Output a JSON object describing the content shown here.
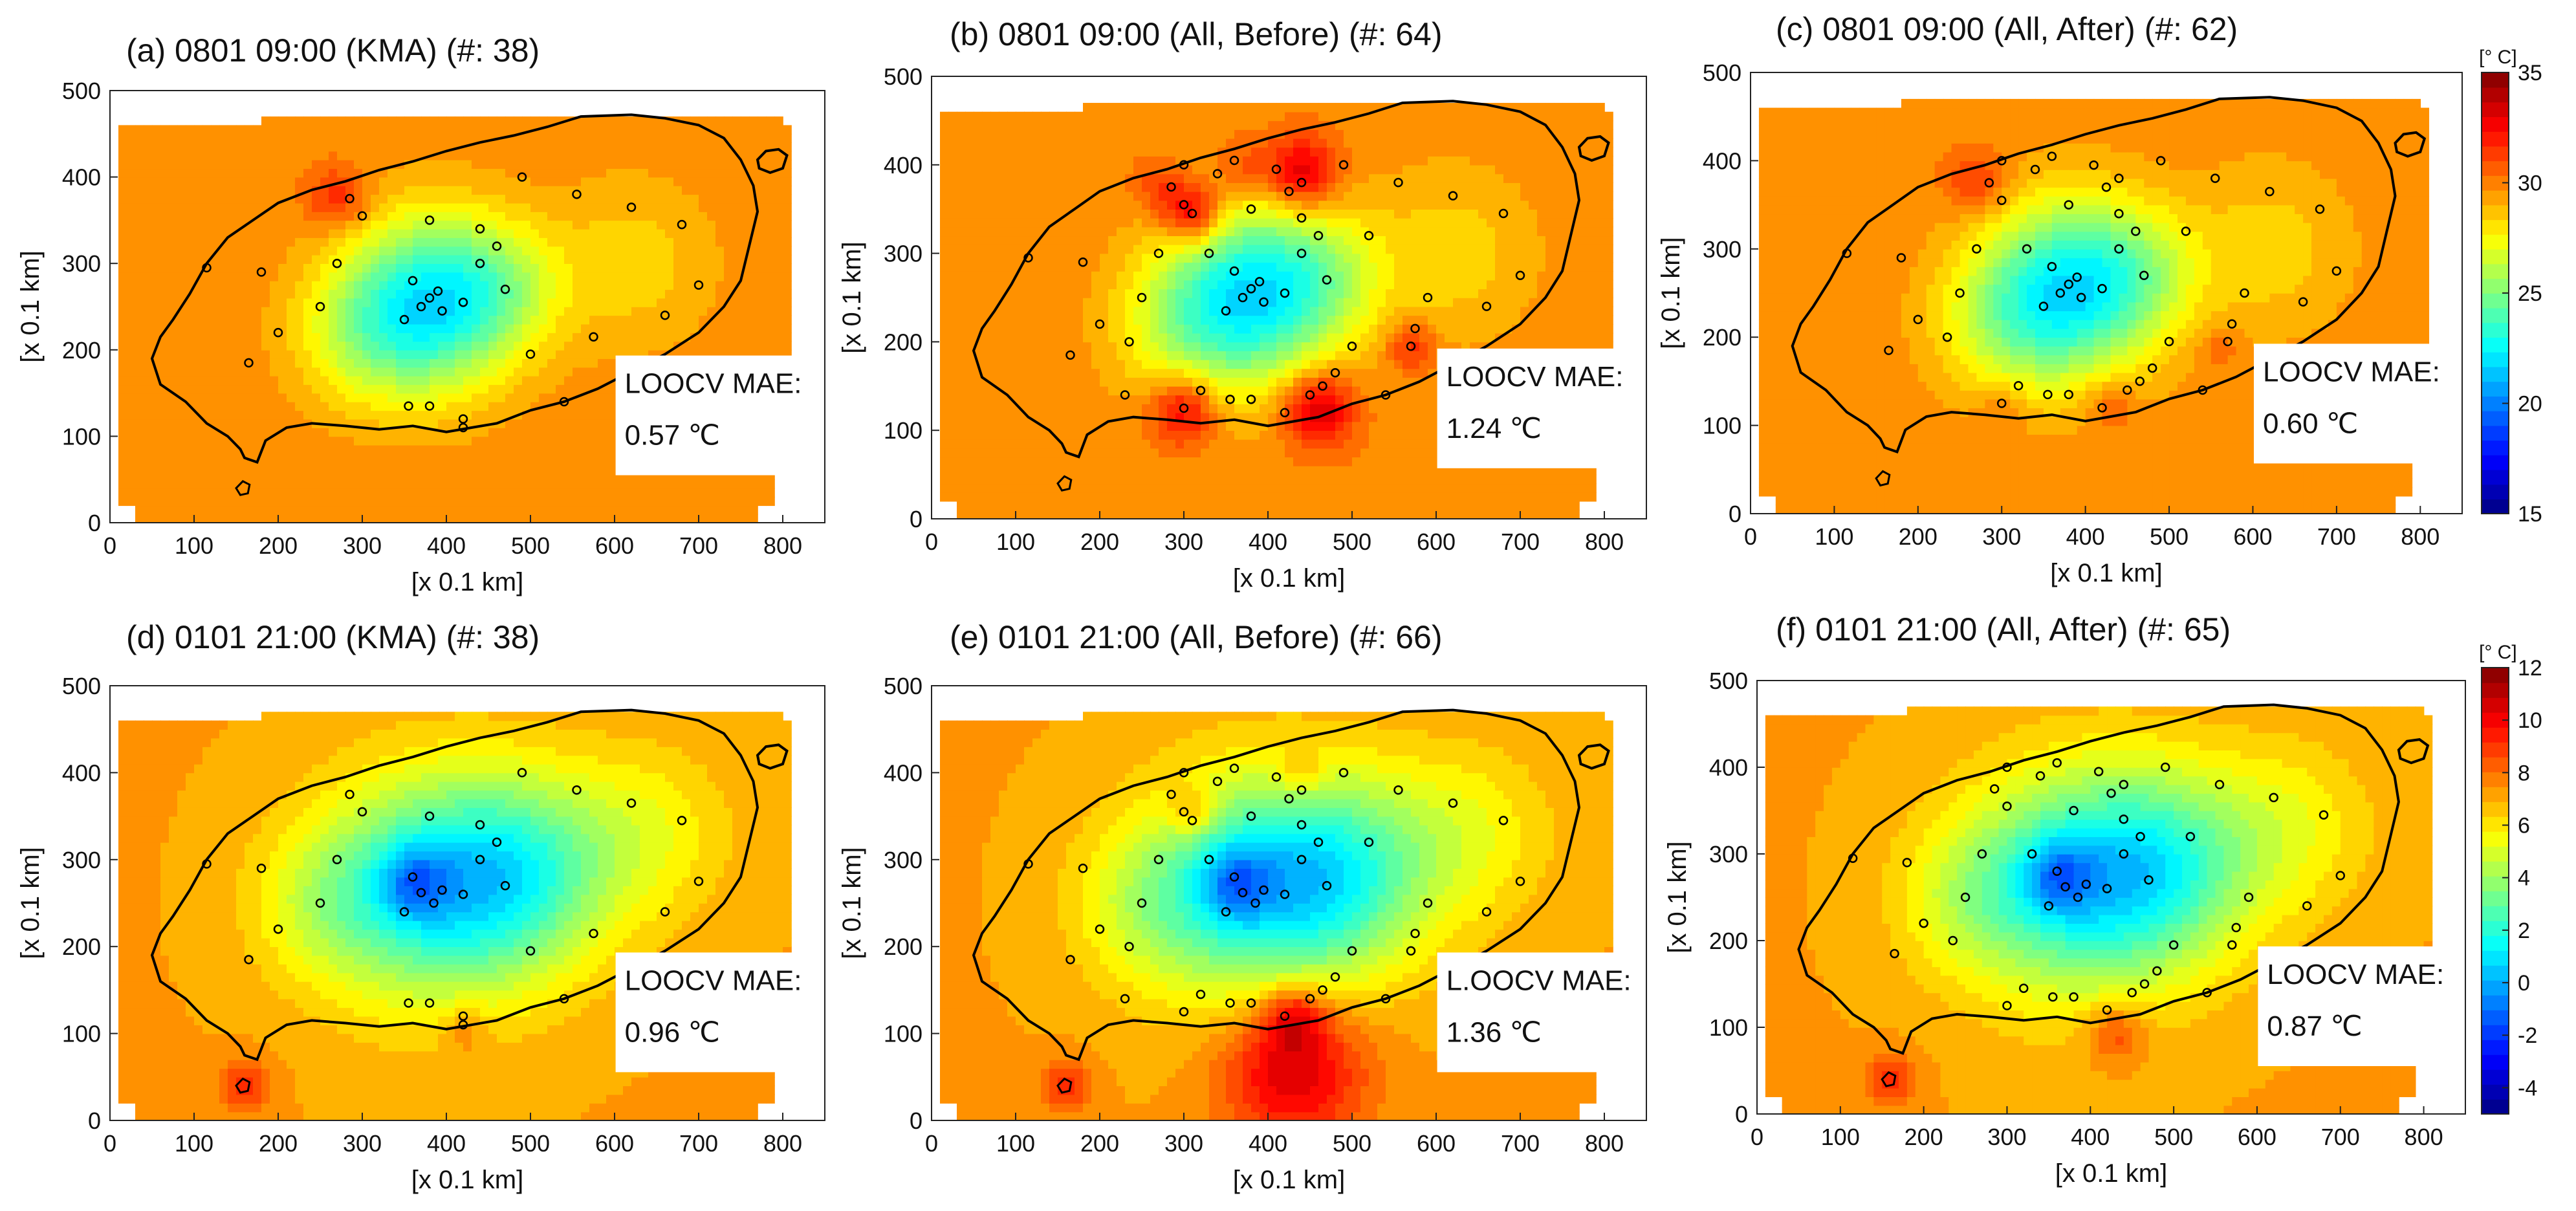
{
  "figure": {
    "xlabel": "[x 0.1 km]",
    "ylabel": "[x 0.1 km]",
    "mae_label": "LOOCV MAE:",
    "xlim": [
      0,
      850
    ],
    "ylim": [
      0,
      500
    ],
    "xticks": [
      0,
      100,
      200,
      300,
      400,
      500,
      600,
      700,
      800
    ],
    "yticks": [
      0,
      100,
      200,
      300,
      400,
      500
    ]
  },
  "colorbars": [
    {
      "unit": "[° C]",
      "min": 15,
      "max": 35,
      "ticks": [
        15,
        20,
        25,
        30,
        35
      ]
    },
    {
      "unit": "[° C]",
      "min": -5,
      "max": 12,
      "ticks": [
        -4,
        -2,
        0,
        2,
        4,
        6,
        8,
        10,
        12
      ]
    }
  ],
  "chart_data": [
    {
      "type": "heatmap",
      "panel": "(a)",
      "title": "(a) 0801 09:00 (KMA) (#: 38)",
      "colorbar": 0,
      "mae_text": "LOOCV MAE:",
      "mae_value": "0.57 ℃",
      "base": 29.8,
      "blobs": [
        [
          385,
          255,
          70,
          -7.0
        ],
        [
          270,
          375,
          25,
          2.2
        ],
        [
          470,
          275,
          50,
          -2.0
        ],
        [
          300,
          220,
          60,
          -2.5
        ],
        [
          620,
          300,
          70,
          -1.5
        ]
      ],
      "stations": [
        [
          380,
          260
        ],
        [
          395,
          245
        ],
        [
          370,
          250
        ],
        [
          360,
          280
        ],
        [
          390,
          268
        ],
        [
          350,
          235
        ],
        [
          420,
          255
        ],
        [
          440,
          340
        ],
        [
          380,
          350
        ],
        [
          470,
          270
        ],
        [
          440,
          300
        ],
        [
          285,
          375
        ],
        [
          180,
          290
        ],
        [
          250,
          250
        ],
        [
          200,
          220
        ],
        [
          165,
          185
        ],
        [
          460,
          320
        ],
        [
          555,
          380
        ],
        [
          490,
          400
        ],
        [
          620,
          365
        ],
        [
          680,
          345
        ],
        [
          700,
          275
        ],
        [
          660,
          240
        ],
        [
          575,
          215
        ],
        [
          500,
          195
        ],
        [
          420,
          120
        ],
        [
          380,
          135
        ],
        [
          355,
          135
        ],
        [
          300,
          355
        ],
        [
          115,
          295
        ],
        [
          270,
          300
        ],
        [
          540,
          140
        ],
        [
          420,
          110
        ]
      ]
    },
    {
      "type": "heatmap",
      "panel": "(b)",
      "title": "(b) 0801 09:00 (All, Before) (#: 64)",
      "colorbar": 0,
      "mae_text": "LOOCV MAE:",
      "mae_value": "1.24 ℃",
      "base": 29.8,
      "blobs": [
        [
          385,
          255,
          70,
          -7.0
        ],
        [
          470,
          275,
          50,
          -2.0
        ],
        [
          300,
          220,
          60,
          -2.5
        ],
        [
          620,
          300,
          70,
          -1.5
        ],
        [
          310,
          345,
          25,
          4.0
        ],
        [
          440,
          390,
          30,
          3.8
        ],
        [
          300,
          125,
          28,
          3.5
        ],
        [
          460,
          125,
          30,
          4.0
        ],
        [
          570,
          195,
          20,
          2.2
        ],
        [
          270,
          375,
          22,
          1.5
        ],
        [
          370,
          395,
          25,
          1.5
        ]
      ],
      "stations": [
        [
          380,
          260
        ],
        [
          395,
          245
        ],
        [
          370,
          250
        ],
        [
          360,
          280
        ],
        [
          390,
          268
        ],
        [
          350,
          235
        ],
        [
          420,
          255
        ],
        [
          440,
          340
        ],
        [
          380,
          350
        ],
        [
          470,
          270
        ],
        [
          440,
          300
        ],
        [
          285,
          375
        ],
        [
          180,
          290
        ],
        [
          250,
          250
        ],
        [
          200,
          220
        ],
        [
          165,
          185
        ],
        [
          460,
          320
        ],
        [
          555,
          380
        ],
        [
          490,
          400
        ],
        [
          620,
          365
        ],
        [
          680,
          345
        ],
        [
          700,
          275
        ],
        [
          660,
          240
        ],
        [
          575,
          215
        ],
        [
          500,
          195
        ],
        [
          420,
          120
        ],
        [
          380,
          135
        ],
        [
          355,
          135
        ],
        [
          300,
          355
        ],
        [
          115,
          295
        ],
        [
          270,
          300
        ],
        [
          540,
          140
        ],
        [
          310,
          345
        ],
        [
          300,
          125
        ],
        [
          450,
          140
        ],
        [
          440,
          380
        ],
        [
          425,
          370
        ],
        [
          410,
          395
        ],
        [
          360,
          405
        ],
        [
          340,
          390
        ],
        [
          465,
          150
        ],
        [
          480,
          165
        ],
        [
          320,
          145
        ],
        [
          570,
          195
        ],
        [
          590,
          250
        ],
        [
          330,
          300
        ],
        [
          300,
          400
        ],
        [
          520,
          320
        ],
        [
          235,
          200
        ],
        [
          230,
          140
        ]
      ]
    },
    {
      "type": "heatmap",
      "panel": "(c)",
      "title": "(c) 0801 09:00 (All, After) (#: 62)",
      "colorbar": 0,
      "mae_text": "LOOCV MAE:",
      "mae_value": "0.60 ℃",
      "base": 29.8,
      "blobs": [
        [
          385,
          255,
          70,
          -7.0
        ],
        [
          470,
          275,
          50,
          -2.0
        ],
        [
          300,
          220,
          60,
          -2.5
        ],
        [
          620,
          300,
          70,
          -1.5
        ],
        [
          270,
          375,
          25,
          2.0
        ],
        [
          430,
          125,
          22,
          1.5
        ],
        [
          300,
          120,
          20,
          1.2
        ],
        [
          560,
          190,
          18,
          1.0
        ]
      ],
      "stations": [
        [
          380,
          260
        ],
        [
          395,
          245
        ],
        [
          370,
          250
        ],
        [
          360,
          280
        ],
        [
          390,
          268
        ],
        [
          350,
          235
        ],
        [
          420,
          255
        ],
        [
          440,
          340
        ],
        [
          380,
          350
        ],
        [
          470,
          270
        ],
        [
          440,
          300
        ],
        [
          285,
          375
        ],
        [
          180,
          290
        ],
        [
          250,
          250
        ],
        [
          200,
          220
        ],
        [
          165,
          185
        ],
        [
          460,
          320
        ],
        [
          555,
          380
        ],
        [
          490,
          400
        ],
        [
          620,
          365
        ],
        [
          680,
          345
        ],
        [
          700,
          275
        ],
        [
          660,
          240
        ],
        [
          575,
          215
        ],
        [
          500,
          195
        ],
        [
          420,
          120
        ],
        [
          380,
          135
        ],
        [
          355,
          135
        ],
        [
          300,
          355
        ],
        [
          115,
          295
        ],
        [
          270,
          300
        ],
        [
          540,
          140
        ],
        [
          300,
          125
        ],
        [
          450,
          140
        ],
        [
          440,
          380
        ],
        [
          425,
          370
        ],
        [
          410,
          395
        ],
        [
          360,
          405
        ],
        [
          340,
          390
        ],
        [
          465,
          150
        ],
        [
          480,
          165
        ],
        [
          320,
          145
        ],
        [
          570,
          195
        ],
        [
          590,
          250
        ],
        [
          330,
          300
        ],
        [
          300,
          400
        ],
        [
          520,
          320
        ],
        [
          235,
          200
        ]
      ]
    },
    {
      "type": "heatmap",
      "panel": "(d)",
      "title": "(d) 0101 21:00 (KMA) (#: 38)",
      "colorbar": 1,
      "mae_text": "LOOCV MAE:",
      "mae_value": "0.96  ℃",
      "base": 7.2,
      "blobs": [
        [
          375,
          265,
          90,
          -5.0
        ],
        [
          490,
          285,
          80,
          -4.0
        ],
        [
          360,
          275,
          30,
          -2.5
        ],
        [
          250,
          250,
          60,
          -1.5
        ],
        [
          160,
          40,
          22,
          2.0
        ],
        [
          420,
          105,
          20,
          1.2
        ],
        [
          640,
          330,
          70,
          -1.5
        ]
      ],
      "stations": [
        [
          360,
          280
        ],
        [
          385,
          250
        ],
        [
          370,
          262
        ],
        [
          395,
          265
        ],
        [
          350,
          240
        ],
        [
          420,
          260
        ],
        [
          440,
          340
        ],
        [
          380,
          350
        ],
        [
          470,
          270
        ],
        [
          440,
          300
        ],
        [
          285,
          375
        ],
        [
          180,
          290
        ],
        [
          250,
          250
        ],
        [
          200,
          220
        ],
        [
          165,
          185
        ],
        [
          460,
          320
        ],
        [
          555,
          380
        ],
        [
          490,
          400
        ],
        [
          620,
          365
        ],
        [
          680,
          345
        ],
        [
          700,
          275
        ],
        [
          660,
          240
        ],
        [
          575,
          215
        ],
        [
          500,
          195
        ],
        [
          420,
          120
        ],
        [
          380,
          135
        ],
        [
          355,
          135
        ],
        [
          300,
          355
        ],
        [
          115,
          295
        ],
        [
          270,
          300
        ],
        [
          540,
          140
        ],
        [
          420,
          110
        ]
      ]
    },
    {
      "type": "heatmap",
      "panel": "(e)",
      "title": "(e) 0101 21:00 (All, Before) (#: 66)",
      "colorbar": 1,
      "mae_text": "L.OOCV MAE:",
      "mae_value": "1.36 ℃",
      "base": 7.2,
      "blobs": [
        [
          375,
          265,
          90,
          -5.0
        ],
        [
          490,
          285,
          80,
          -4.0
        ],
        [
          360,
          275,
          30,
          -2.5
        ],
        [
          250,
          250,
          60,
          -1.5
        ],
        [
          160,
          40,
          22,
          2.0
        ],
        [
          430,
          60,
          60,
          3.5
        ],
        [
          430,
          120,
          25,
          2.5
        ],
        [
          310,
          355,
          20,
          2.0
        ],
        [
          440,
          400,
          20,
          1.5
        ],
        [
          640,
          330,
          70,
          -1.5
        ]
      ],
      "stations": [
        [
          360,
          280
        ],
        [
          385,
          250
        ],
        [
          370,
          262
        ],
        [
          395,
          265
        ],
        [
          350,
          240
        ],
        [
          420,
          260
        ],
        [
          440,
          340
        ],
        [
          380,
          350
        ],
        [
          470,
          270
        ],
        [
          440,
          300
        ],
        [
          285,
          375
        ],
        [
          180,
          290
        ],
        [
          250,
          250
        ],
        [
          200,
          220
        ],
        [
          165,
          185
        ],
        [
          460,
          320
        ],
        [
          555,
          380
        ],
        [
          490,
          400
        ],
        [
          620,
          365
        ],
        [
          680,
          345
        ],
        [
          700,
          275
        ],
        [
          660,
          240
        ],
        [
          575,
          215
        ],
        [
          500,
          195
        ],
        [
          420,
          120
        ],
        [
          380,
          135
        ],
        [
          355,
          135
        ],
        [
          300,
          355
        ],
        [
          115,
          295
        ],
        [
          270,
          300
        ],
        [
          540,
          140
        ],
        [
          310,
          345
        ],
        [
          300,
          125
        ],
        [
          450,
          140
        ],
        [
          440,
          380
        ],
        [
          425,
          370
        ],
        [
          410,
          395
        ],
        [
          360,
          405
        ],
        [
          340,
          390
        ],
        [
          465,
          150
        ],
        [
          480,
          165
        ],
        [
          320,
          145
        ],
        [
          570,
          195
        ],
        [
          590,
          250
        ],
        [
          330,
          300
        ],
        [
          300,
          400
        ],
        [
          520,
          320
        ],
        [
          235,
          200
        ],
        [
          230,
          140
        ]
      ]
    },
    {
      "type": "heatmap",
      "panel": "(f)",
      "title": "(f) 0101 21:00 (All, After) (#: 65)",
      "colorbar": 1,
      "mae_text": "LOOCV MAE:",
      "mae_value": "0.87  ℃",
      "base": 7.2,
      "blobs": [
        [
          375,
          265,
          90,
          -5.0
        ],
        [
          490,
          285,
          80,
          -4.0
        ],
        [
          360,
          275,
          30,
          -2.5
        ],
        [
          250,
          250,
          60,
          -1.5
        ],
        [
          160,
          40,
          22,
          2.0
        ],
        [
          430,
          95,
          25,
          2.0
        ],
        [
          640,
          330,
          70,
          -1.5
        ]
      ],
      "stations": [
        [
          360,
          280
        ],
        [
          385,
          250
        ],
        [
          370,
          262
        ],
        [
          395,
          265
        ],
        [
          350,
          240
        ],
        [
          420,
          260
        ],
        [
          440,
          340
        ],
        [
          380,
          350
        ],
        [
          470,
          270
        ],
        [
          440,
          300
        ],
        [
          285,
          375
        ],
        [
          180,
          290
        ],
        [
          250,
          250
        ],
        [
          200,
          220
        ],
        [
          165,
          185
        ],
        [
          460,
          320
        ],
        [
          555,
          380
        ],
        [
          490,
          400
        ],
        [
          620,
          365
        ],
        [
          680,
          345
        ],
        [
          700,
          275
        ],
        [
          660,
          240
        ],
        [
          575,
          215
        ],
        [
          500,
          195
        ],
        [
          420,
          120
        ],
        [
          380,
          135
        ],
        [
          355,
          135
        ],
        [
          300,
          355
        ],
        [
          115,
          295
        ],
        [
          270,
          300
        ],
        [
          540,
          140
        ],
        [
          300,
          125
        ],
        [
          450,
          140
        ],
        [
          440,
          380
        ],
        [
          425,
          370
        ],
        [
          410,
          395
        ],
        [
          360,
          405
        ],
        [
          340,
          390
        ],
        [
          465,
          150
        ],
        [
          480,
          165
        ],
        [
          320,
          145
        ],
        [
          570,
          195
        ],
        [
          590,
          250
        ],
        [
          330,
          300
        ],
        [
          300,
          400
        ],
        [
          520,
          320
        ],
        [
          235,
          200
        ]
      ]
    }
  ]
}
